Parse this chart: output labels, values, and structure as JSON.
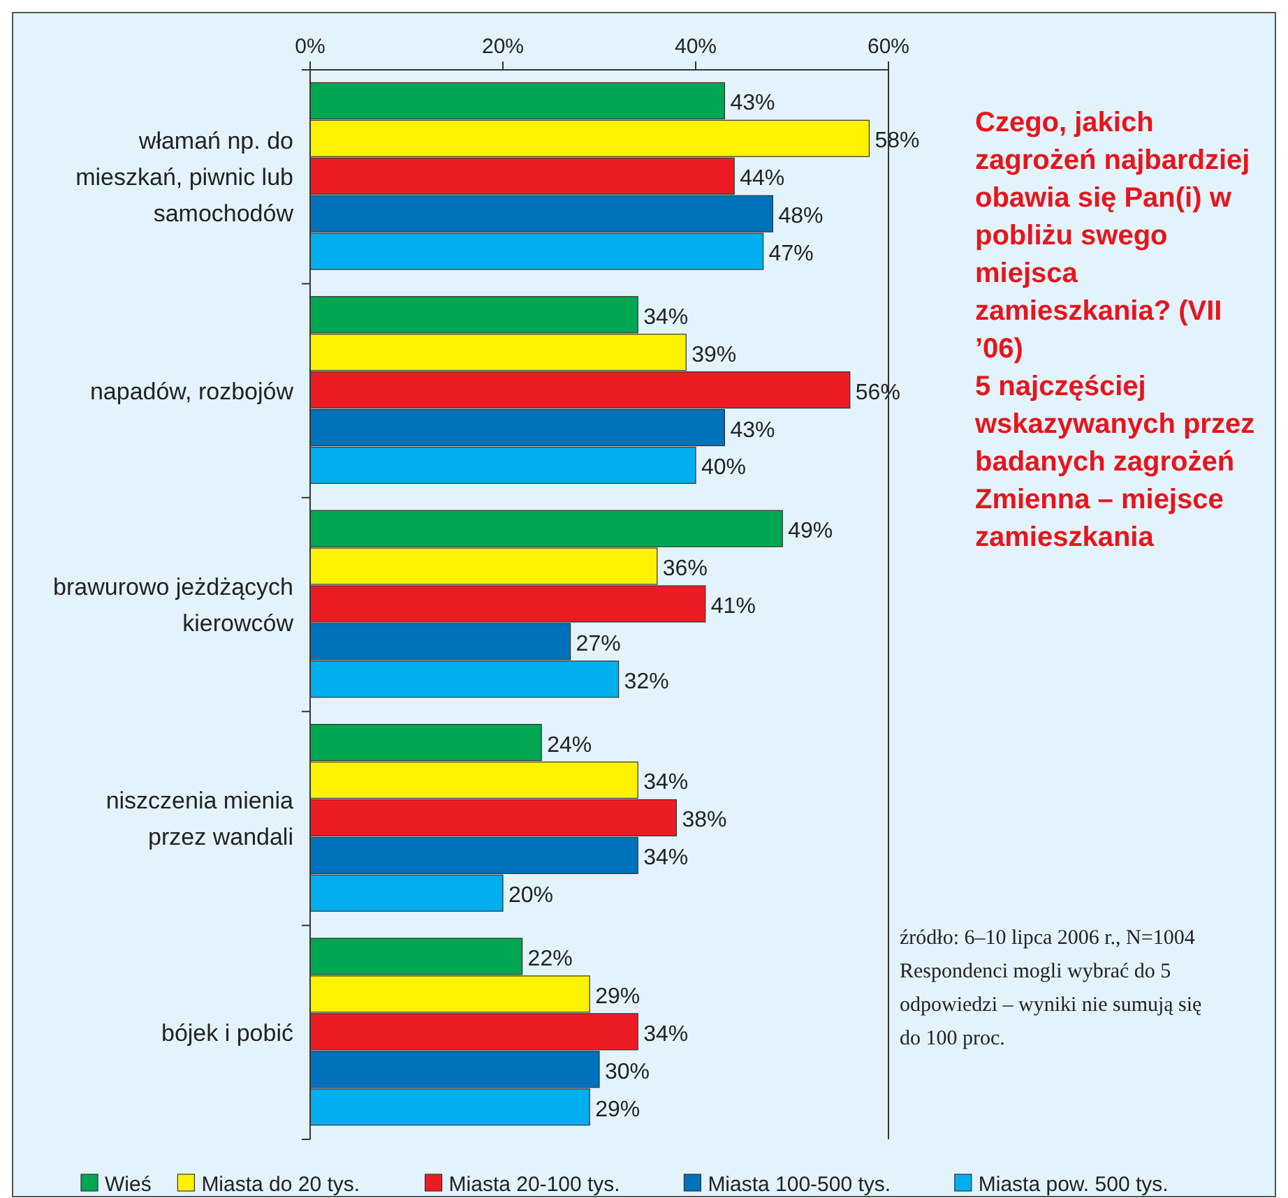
{
  "chart_data": {
    "type": "bar",
    "orientation": "horizontal",
    "title": "Czego, jakich zagrożeń najbardziej obawia się Pan(i) w pobliżu swego miejsca zamieszkania? (VII ’06)",
    "subtitle": "5 najczęściej wskazywanych przez badanych zagrożeń Zmienna – miejsce zamieszkania",
    "categories": [
      "włamań np. do mieszkań, piwnic lub samochodów",
      "napadów, rozbojów",
      "brawurowo jeżdżących kierowców",
      "niszczenia mienia przez wandali",
      "bójek i pobić"
    ],
    "series": [
      {
        "name": "Wieś",
        "color": "#00a651",
        "values": [
          43,
          34,
          49,
          24,
          22
        ],
        "value_labels": [
          "43%",
          "34%",
          "49%",
          "24%",
          "22%"
        ]
      },
      {
        "name": "Miasta do 20 tys.",
        "color": "#fff200",
        "values": [
          58,
          39,
          36,
          34,
          29
        ],
        "value_labels": [
          "58%",
          "39%",
          "36%",
          "34%",
          "29%"
        ]
      },
      {
        "name": "Miasta 20-100 tys.",
        "color": "#ed1c24",
        "values": [
          44,
          56,
          41,
          38,
          34
        ],
        "value_labels": [
          "44%",
          "56%",
          "41%",
          "38%",
          "34%"
        ]
      },
      {
        "name": "Miasta 100-500 tys.",
        "color": "#0072bc",
        "values": [
          48,
          43,
          27,
          34,
          30
        ],
        "value_labels": [
          "48%",
          "43%",
          "27%",
          "34%",
          "30%"
        ]
      },
      {
        "name": "Miasta pow. 500 tys.",
        "color": "#00aeef",
        "values": [
          47,
          40,
          32,
          20,
          29
        ],
        "value_labels": [
          "47%",
          "40%",
          "32%",
          "20%",
          "29%"
        ]
      }
    ],
    "xlim": [
      0,
      60
    ],
    "xticks": [
      {
        "value": 0,
        "label": "0%"
      },
      {
        "value": 20,
        "label": "20%"
      },
      {
        "value": 40,
        "label": "40%"
      },
      {
        "value": 60,
        "label": "60%"
      }
    ],
    "legend": "bottom",
    "annotations": [
      "źródło: 6–10 lipca 2006 r., N=1004",
      "Respondenci mogli wybrać do 5 odpowiedzi – wyniki nie sumują się do 100 proc."
    ]
  }
}
